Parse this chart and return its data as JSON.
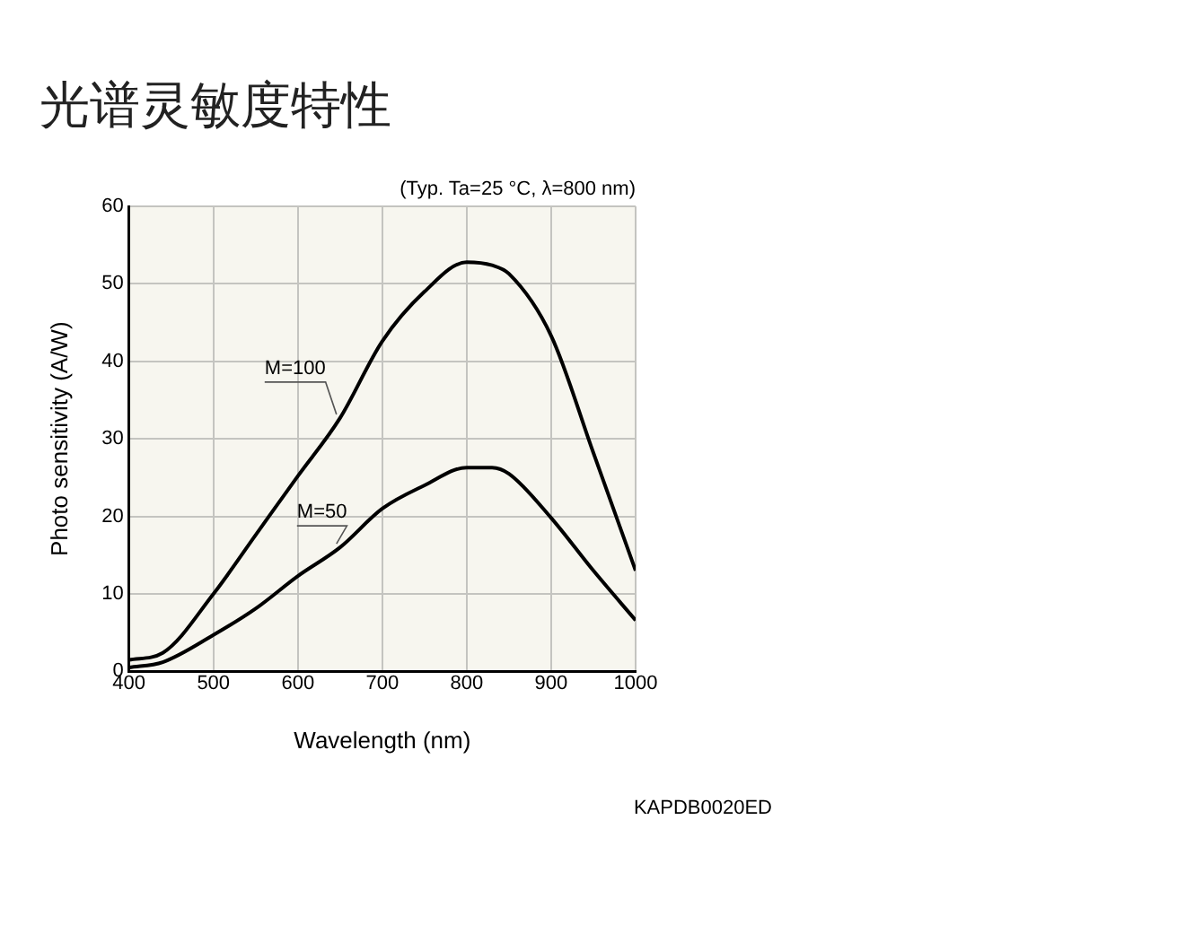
{
  "chart_data": {
    "type": "line",
    "title": "光谱灵敏度特性",
    "xlabel": "Wavelength (nm)",
    "ylabel": "Photo sensitivity (A/W)",
    "annotations": [
      "(Typ. Ta=25 °C, λ=800 nm)",
      "KAPDB0020ED"
    ],
    "x": [
      400,
      440,
      500,
      550,
      600,
      650,
      700,
      750,
      800,
      830,
      850,
      900,
      950,
      1000
    ],
    "series": [
      {
        "name": "M=100",
        "color": "#000000",
        "values": [
          1.5,
          2.4,
          10,
          17.6,
          25.2,
          32.7,
          42.6,
          49,
          52.8,
          52.4,
          51.3,
          43.3,
          28.2,
          13
        ]
      },
      {
        "name": "M=50",
        "color": "#000000",
        "values": [
          0.5,
          1.2,
          4.7,
          8.1,
          12.3,
          16,
          21,
          24,
          26.3,
          26.3,
          25.5,
          19.8,
          13,
          6.6
        ]
      }
    ],
    "xlim": [
      400,
      1000
    ],
    "xticks": [
      400,
      500,
      600,
      700,
      800,
      900,
      1000
    ],
    "ylim": [
      0,
      60
    ],
    "yticks": [
      0,
      10,
      20,
      30,
      40,
      50,
      60
    ],
    "grid": true,
    "legend": false,
    "marker": "none",
    "line_style": "solid"
  }
}
